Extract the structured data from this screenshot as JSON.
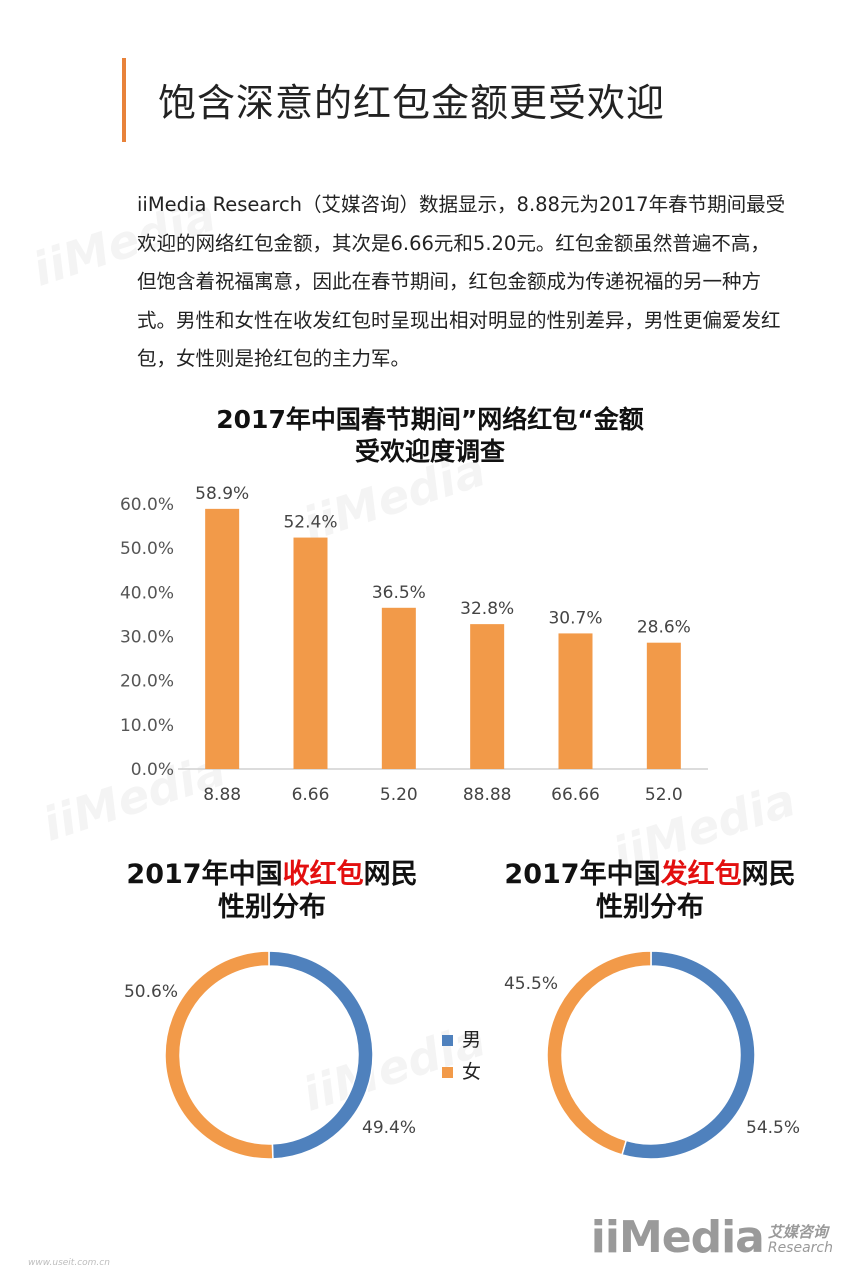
{
  "page": {
    "title": "饱含深意的红包金额更受欢迎",
    "intro": "iiMedia Research（艾媒咨询）数据显示，8.88元为2017年春节期间最受欢迎的网络红包金额，其次是6.66元和5.20元。红包金额虽然普遍不高，但饱含着祝福寓意，因此在春节期间，红包金额成为传递祝福的另一种方式。男性和女性在收发红包时呈现出相对明显的性别差异，男性更偏爱发红包，女性则是抢红包的主力军。",
    "site": "www.useit.com.cn"
  },
  "brand": {
    "mark": "iiMedia",
    "cn": "艾媒咨询",
    "en": "Research"
  },
  "colors": {
    "accent": "#e8823a",
    "bar": "#f29a49",
    "male": "#4f81bd",
    "female": "#f29a49",
    "highlight": "#e30f0f"
  },
  "chart_data": [
    {
      "type": "bar",
      "title_line1": "2017年中国春节期间”网络红包“金额",
      "title_line2": "受欢迎度调查",
      "categories": [
        "8.88",
        "6.66",
        "5.20",
        "88.88",
        "66.66",
        "52.0"
      ],
      "values": [
        58.9,
        52.4,
        36.5,
        32.8,
        30.7,
        28.6
      ],
      "value_labels": [
        "58.9%",
        "52.4%",
        "36.5%",
        "32.8%",
        "30.7%",
        "28.6%"
      ],
      "ylim": [
        0,
        60
      ],
      "yticks": [
        "0.0%",
        "10.0%",
        "20.0%",
        "30.0%",
        "40.0%",
        "50.0%",
        "60.0%"
      ],
      "grid": false
    },
    {
      "type": "pie",
      "title_pre": "2017年中国",
      "title_hl": "收红包",
      "title_post": "网民",
      "title_line2": "性别分布",
      "slices": [
        {
          "name": "男",
          "value": 49.4,
          "label": "49.4%"
        },
        {
          "name": "女",
          "value": 50.6,
          "label": "50.6%"
        }
      ]
    },
    {
      "type": "pie",
      "title_pre": "2017年中国",
      "title_hl": "发红包",
      "title_post": "网民",
      "title_line2": "性别分布",
      "slices": [
        {
          "name": "男",
          "value": 54.5,
          "label": "54.5%"
        },
        {
          "name": "女",
          "value": 45.5,
          "label": "45.5%"
        }
      ]
    }
  ],
  "legend": [
    {
      "name": "男",
      "color": "#4f81bd"
    },
    {
      "name": "女",
      "color": "#f29a49"
    }
  ]
}
